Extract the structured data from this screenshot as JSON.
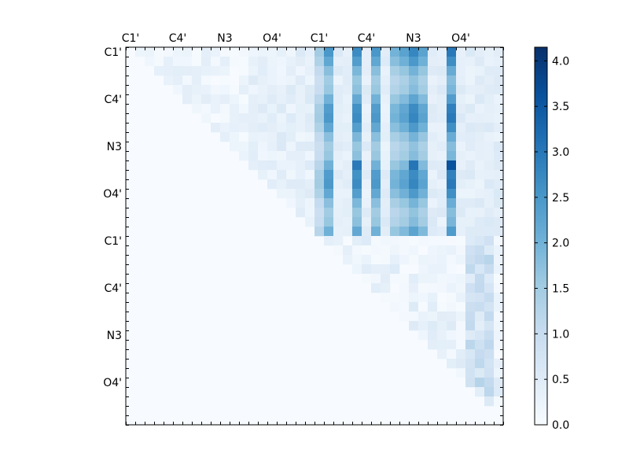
{
  "chart_data": {
    "type": "heatmap",
    "title": "",
    "xlabel": "",
    "ylabel": "",
    "grid_size": 40,
    "tick_labels": [
      "C1'",
      "C4'",
      "N3",
      "O4'",
      "C1'",
      "C4'",
      "N3",
      "O4'"
    ],
    "x_tick_label_cells": [
      0.5,
      5.5,
      10.5,
      15.5,
      20.5,
      25.5,
      30.5,
      35.5
    ],
    "y_tick_label_cells": [
      0.5,
      5.5,
      10.5,
      15.5,
      20.5,
      25.5,
      30.5,
      35.5
    ],
    "colorbar": {
      "label": "",
      "min": 0.0,
      "max": 4.15,
      "ticks": [
        "0.0",
        "0.5",
        "1.0",
        "1.5",
        "2.0",
        "2.5",
        "3.0",
        "3.5",
        "4.0"
      ],
      "tick_values": [
        0,
        0.5,
        1,
        1.5,
        2,
        2.5,
        3,
        3.5,
        4
      ],
      "colormap": "Blues",
      "stops": [
        "#f7fbff",
        "#deebf7",
        "#c6dbef",
        "#9ecae1",
        "#6baed6",
        "#4292c6",
        "#2171b5",
        "#08519c",
        "#08306b"
      ]
    },
    "hot_columns": [
      20,
      21,
      24,
      26,
      28,
      29,
      30,
      31,
      34
    ],
    "hot_column_base": [
      1.5,
      2.5,
      2.7,
      2.5,
      2.0,
      2.3,
      2.8,
      2.3,
      3.0
    ],
    "hot_rows": 20,
    "annotations": []
  }
}
